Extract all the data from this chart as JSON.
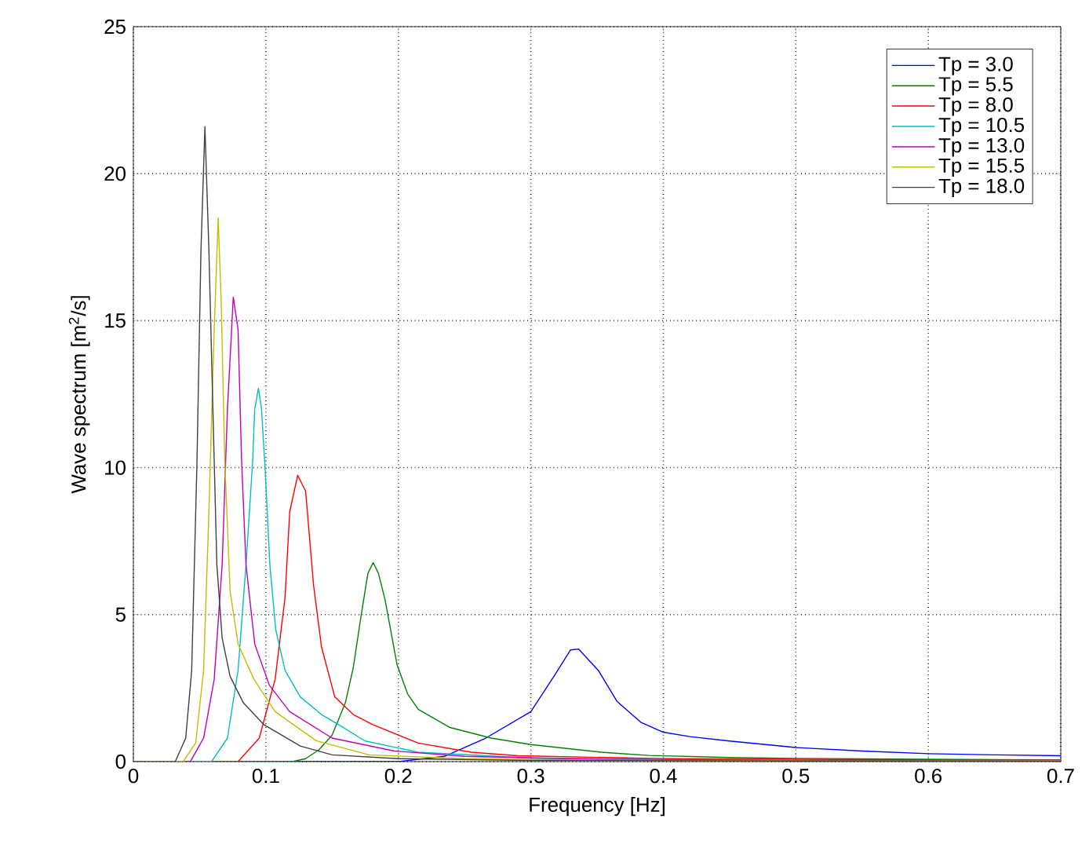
{
  "chart_data": {
    "type": "line",
    "xlabel": "Frequency [Hz]",
    "ylabel": "Wave spectrum [m$^{2}$/s]",
    "xlim": [
      0,
      0.7
    ],
    "ylim": [
      0,
      25
    ],
    "xticks": [
      0,
      0.1,
      0.2,
      0.3,
      0.4,
      0.5,
      0.6,
      0.7
    ],
    "yticks": [
      0,
      5,
      10,
      15,
      20,
      25
    ],
    "grid": true,
    "legend": "top right",
    "marker": "none",
    "line_style": "solid",
    "series": [
      {
        "name": "Tp = 3.0",
        "color": "#0000ff",
        "x": [
          0,
          0.2,
          0.235,
          0.266,
          0.3,
          0.318,
          0.33,
          0.336,
          0.351,
          0.365,
          0.383,
          0.4,
          0.42,
          0.45,
          0.5,
          0.55,
          0.6,
          0.65,
          0.7
        ],
        "values": [
          0,
          0,
          0.18,
          0.8,
          1.7,
          2.94,
          3.8,
          3.83,
          3.1,
          2.05,
          1.34,
          1.0,
          0.85,
          0.7,
          0.48,
          0.36,
          0.27,
          0.23,
          0.2
        ]
      },
      {
        "name": "Tp = 5.5",
        "color": "#008000",
        "x": [
          0,
          0.12,
          0.13,
          0.14,
          0.15,
          0.16,
          0.166,
          0.172,
          0.177,
          0.181,
          0.185,
          0.19,
          0.199,
          0.207,
          0.215,
          0.239,
          0.27,
          0.3,
          0.353,
          0.389,
          0.45,
          0.5,
          0.6,
          0.7
        ],
        "values": [
          0,
          0,
          0.1,
          0.4,
          0.9,
          2.0,
          3.2,
          5.0,
          6.4,
          6.77,
          6.4,
          5.5,
          3.3,
          2.3,
          1.78,
          1.16,
          0.8,
          0.58,
          0.32,
          0.21,
          0.14,
          0.11,
          0.08,
          0.06
        ]
      },
      {
        "name": "Tp = 8.0",
        "color": "#ff0000",
        "x": [
          0,
          0.079,
          0.095,
          0.107,
          0.1145,
          0.118,
          0.124,
          0.13,
          0.136,
          0.142,
          0.152,
          0.166,
          0.181,
          0.215,
          0.255,
          0.29,
          0.4,
          0.5,
          0.6,
          0.7
        ],
        "values": [
          0,
          0,
          0.8,
          2.8,
          5.6,
          8.5,
          9.74,
          9.2,
          6.0,
          3.9,
          2.2,
          1.6,
          1.25,
          0.63,
          0.32,
          0.2,
          0.1,
          0.08,
          0.06,
          0.05
        ]
      },
      {
        "name": "Tp = 10.5",
        "color": "#00bfbf",
        "x": [
          0,
          0.059,
          0.071,
          0.079,
          0.085,
          0.09,
          0.0916,
          0.0944,
          0.0967,
          0.0995,
          0.103,
          0.1074,
          0.1145,
          0.126,
          0.142,
          0.158,
          0.175,
          0.215,
          0.3,
          0.4
        ],
        "values": [
          0,
          0,
          0.8,
          3.1,
          6.7,
          10.2,
          12.0,
          12.7,
          12.0,
          9.9,
          6.7,
          4.5,
          3.1,
          2.2,
          1.6,
          1.17,
          0.7,
          0.32,
          0.12,
          0.07
        ]
      },
      {
        "name": "Tp = 13.0",
        "color": "#bf00bf",
        "x": [
          0,
          0.043,
          0.053,
          0.061,
          0.067,
          0.071,
          0.0754,
          0.079,
          0.0817,
          0.085,
          0.0916,
          0.1026,
          0.118,
          0.15,
          0.197,
          0.25,
          0.35,
          0.5,
          0.7
        ],
        "values": [
          0,
          0,
          0.8,
          2.8,
          6.7,
          12.0,
          15.8,
          14.7,
          10.2,
          6.7,
          4.0,
          2.6,
          1.7,
          0.8,
          0.36,
          0.18,
          0.08,
          0.04,
          0.02
        ]
      },
      {
        "name": "Tp = 15.5",
        "color": "#bfbf00",
        "x": [
          0,
          0.0375,
          0.047,
          0.053,
          0.057,
          0.061,
          0.064,
          0.0663,
          0.069,
          0.073,
          0.079,
          0.091,
          0.107,
          0.138,
          0.178,
          0.25,
          0.35,
          0.5,
          0.7
        ],
        "values": [
          0,
          0,
          0.63,
          3.1,
          8.5,
          14.7,
          18.5,
          15.6,
          10.2,
          5.8,
          4.0,
          2.8,
          1.7,
          0.71,
          0.23,
          0.1,
          0.05,
          0.03,
          0.02
        ]
      },
      {
        "name": "Tp = 18.0",
        "color": "#404040",
        "x": [
          0,
          0.0316,
          0.0395,
          0.044,
          0.048,
          0.051,
          0.054,
          0.057,
          0.06,
          0.063,
          0.067,
          0.073,
          0.083,
          0.0987,
          0.126,
          0.15,
          0.2,
          0.3,
          0.5,
          0.7
        ],
        "values": [
          0,
          0,
          0.8,
          3.1,
          10.2,
          17.4,
          21.6,
          17.4,
          12.0,
          6.7,
          4.2,
          2.9,
          2.0,
          1.25,
          0.53,
          0.23,
          0.1,
          0.04,
          0.02,
          0.01
        ]
      }
    ]
  }
}
